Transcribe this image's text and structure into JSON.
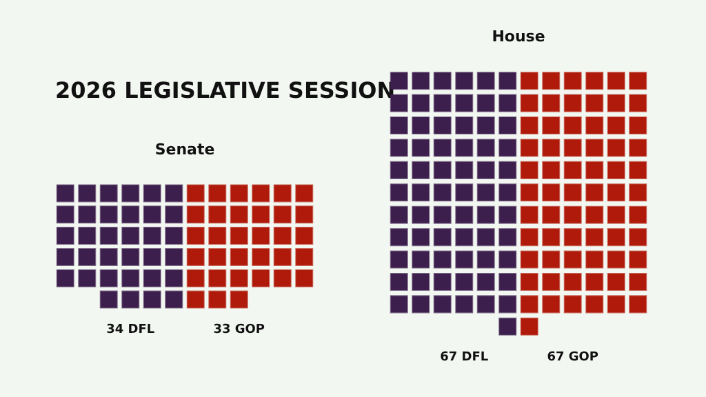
{
  "chart_data": [
    {
      "type": "other",
      "title": "2026 LEGISLATIVE SESSION"
    },
    {
      "type": "other",
      "title": "Senate",
      "categories": [
        null,
        null
      ],
      "values": [
        34,
        33
      ],
      "value_labels": [
        "34 DFL",
        "33 GOP"
      ],
      "colors": [
        "#3d1f4e",
        "#b01a0a"
      ]
    },
    {
      "type": "other",
      "title": "House",
      "categories": [
        null,
        null
      ],
      "values": [
        67,
        67
      ],
      "value_labels": [
        "67 DFL",
        "67 GOP"
      ],
      "colors": [
        "#3d1f4e",
        "#b01a0a"
      ]
    }
  ]
}
